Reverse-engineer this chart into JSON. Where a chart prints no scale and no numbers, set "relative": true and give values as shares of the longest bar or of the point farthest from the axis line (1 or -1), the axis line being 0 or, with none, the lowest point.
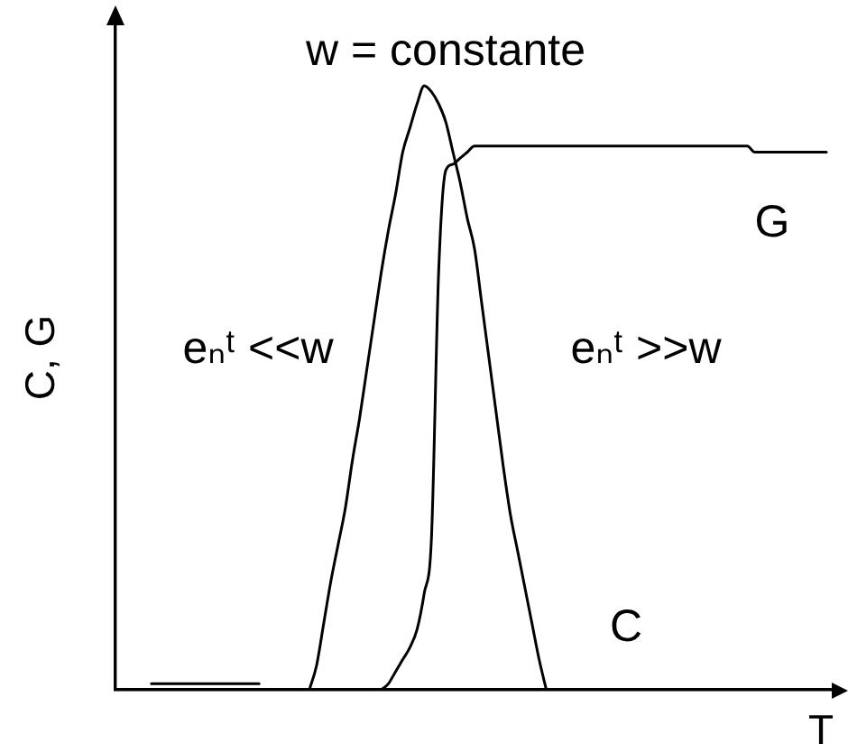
{
  "chart_data": {
    "type": "line",
    "relative": true,
    "xlabel": "T",
    "ylabel": "C, G",
    "marker": "none",
    "annotations": [
      "w = constante",
      "eₙᵗ <<w",
      "eₙᵗ >>w"
    ],
    "categories": [
      null,
      null,
      null,
      null,
      null,
      null,
      null,
      null,
      null,
      null,
      null,
      null,
      null,
      null,
      null,
      null,
      null,
      null,
      null,
      null,
      null,
      null,
      null,
      null,
      null,
      null,
      null,
      null,
      null,
      null,
      null,
      null,
      null,
      null,
      null,
      null,
      null,
      null,
      null,
      null,
      null,
      null,
      null,
      null,
      null,
      null,
      null,
      null,
      null,
      null,
      null,
      null,
      null,
      null,
      null,
      null,
      null,
      null,
      null,
      null,
      null,
      null,
      null,
      null,
      null,
      null,
      null,
      null,
      null,
      null,
      null,
      null,
      null,
      null,
      null,
      null,
      null,
      null,
      null,
      null,
      null,
      null,
      null,
      null,
      null,
      null,
      null,
      null,
      null,
      null,
      null,
      null,
      null,
      null,
      null,
      null,
      null,
      null,
      null,
      null,
      null
    ],
    "series": [
      {
        "name": "C",
        "color": "#000000",
        "values": [
          null,
          null,
          null,
          null,
          null,
          0.01,
          0.01,
          0.01,
          0.01,
          0.01,
          0.01,
          0.01,
          0.01,
          0.01,
          0.01,
          0.01,
          0.01,
          0.01,
          0.01,
          0.01,
          0.01,
          null,
          null,
          null,
          null,
          null,
          null,
          0,
          0.04,
          0.11,
          0.18,
          0.24,
          0.3,
          0.38,
          0.45,
          0.53,
          0.61,
          0.69,
          0.76,
          0.82,
          0.89,
          0.93,
          0.97,
          1,
          0.99,
          0.97,
          0.94,
          0.89,
          0.84,
          0.78,
          0.73,
          0.64,
          0.55,
          0.46,
          0.37,
          0.29,
          0.23,
          0.17,
          0.11,
          0.05,
          0,
          null,
          null,
          null,
          null,
          null,
          null,
          null,
          null,
          null,
          null,
          null,
          null,
          null,
          null,
          null,
          null,
          null,
          null,
          null,
          null,
          null,
          null,
          null,
          null,
          null,
          null,
          null,
          null,
          null,
          null,
          null,
          null,
          null,
          null,
          null,
          null,
          null,
          null,
          null,
          null
        ]
      },
      {
        "name": "G",
        "color": "#000000",
        "values": [
          null,
          null,
          null,
          null,
          null,
          null,
          null,
          null,
          null,
          null,
          null,
          null,
          null,
          null,
          null,
          null,
          null,
          null,
          null,
          null,
          null,
          null,
          null,
          null,
          null,
          null,
          null,
          null,
          null,
          null,
          null,
          null,
          null,
          null,
          null,
          null,
          null,
          0,
          0.01,
          0.03,
          0.05,
          0.07,
          0.1,
          0.16,
          0.25,
          0.69,
          0.86,
          0.87,
          0.88,
          0.89,
          0.9,
          0.9,
          0.9,
          0.9,
          0.9,
          0.9,
          0.9,
          0.9,
          0.9,
          0.9,
          0.9,
          0.9,
          0.9,
          0.9,
          0.9,
          0.9,
          0.9,
          0.9,
          0.9,
          0.9,
          0.9,
          0.9,
          0.9,
          0.9,
          0.9,
          0.9,
          0.9,
          0.9,
          0.9,
          0.9,
          0.9,
          0.9,
          0.9,
          0.9,
          0.9,
          0.9,
          0.9,
          0.9,
          0.9,
          0.89,
          0.89,
          0.89,
          0.89,
          0.89,
          0.89,
          0.89,
          0.89,
          0.89,
          0.89,
          0.89,
          null
        ]
      }
    ]
  }
}
